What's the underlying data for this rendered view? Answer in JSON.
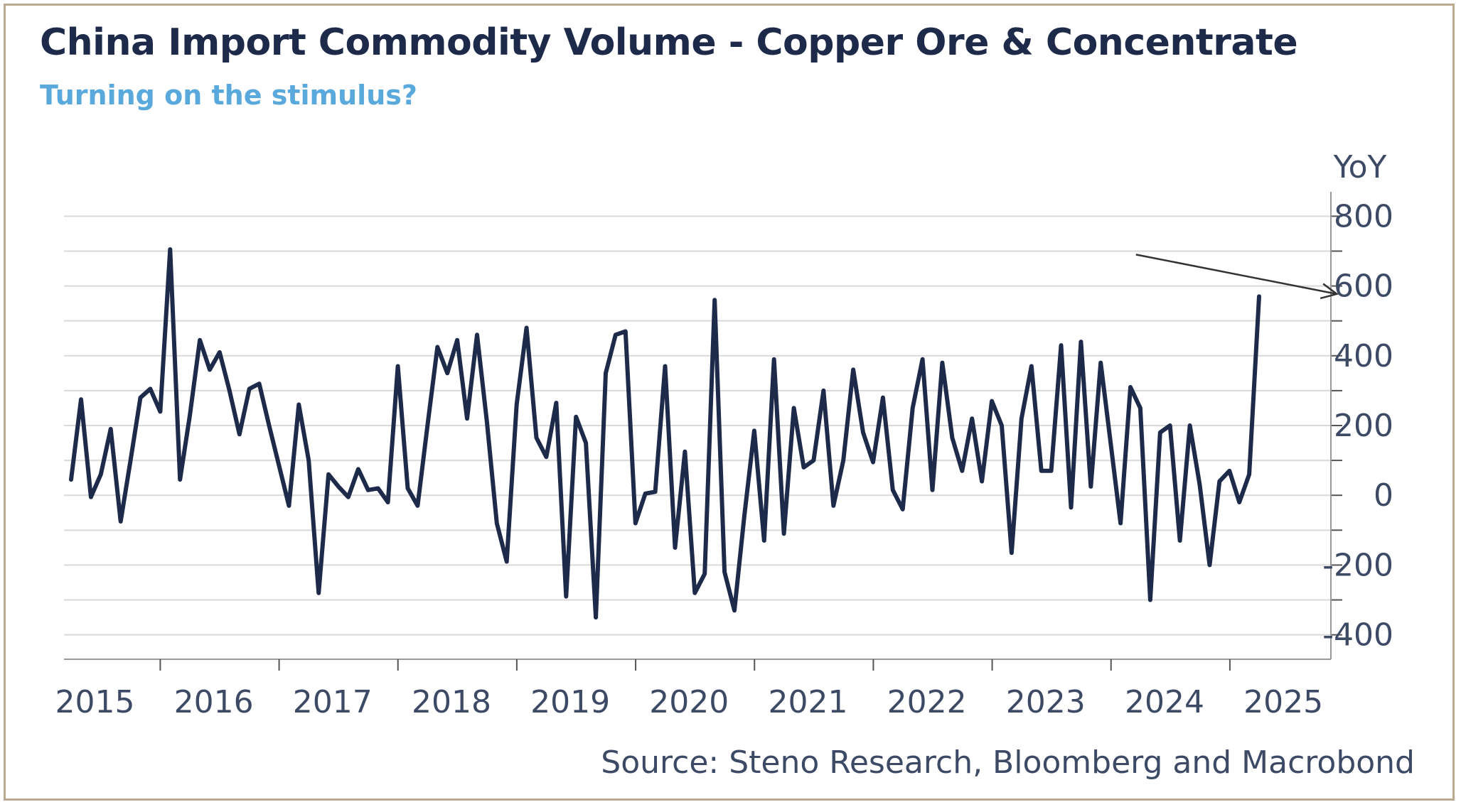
{
  "title": "China Import Commodity Volume - Copper Ore & Concentrate",
  "subtitle": "Turning on the stimulus?",
  "source": "Source: Steno Research, Bloomberg and Macrobond",
  "colors": {
    "line": "#1e2a4a",
    "subtitle": "#5aa9dc",
    "grid": "#d9d9d9",
    "frame": "#b8a98f",
    "arrow": "#333333"
  },
  "chart_data": {
    "type": "line",
    "title": "China Import Commodity Volume - Copper Ore & Concentrate",
    "subtitle": "Turning on the stimulus?",
    "unit_label": "YoY",
    "ylim": [
      -470,
      870
    ],
    "yticks": [
      800,
      600,
      400,
      200,
      0,
      -200,
      -400
    ],
    "ytick_labels": [
      "800",
      "600",
      "400",
      "200",
      "0",
      "-200",
      "-400"
    ],
    "xlim": [
      2014.94,
      2025.6
    ],
    "xticks": [
      2015,
      2016,
      2017,
      2018,
      2019,
      2020,
      2021,
      2022,
      2023,
      2024,
      2025
    ],
    "xtick_labels": [
      "2015",
      "2016",
      "2017",
      "2018",
      "2019",
      "2020",
      "2021",
      "2022",
      "2023",
      "2024",
      "2025"
    ],
    "grid": true,
    "annotation": {
      "type": "arrow",
      "from": [
        2023.96,
        690
      ],
      "to": [
        2025.65,
        577
      ]
    },
    "series": [
      {
        "name": "Copper Ore & Concentrate YoY",
        "x_start": 2015.0,
        "x_step": 0.0833,
        "values": [
          45,
          275,
          -5,
          60,
          190,
          -75,
          100,
          280,
          305,
          240,
          705,
          45,
          230,
          445,
          360,
          410,
          300,
          175,
          305,
          320,
          200,
          85,
          -30,
          260,
          100,
          -280,
          60,
          25,
          -5,
          75,
          15,
          20,
          -20,
          370,
          20,
          -30,
          200,
          425,
          350,
          445,
          220,
          460,
          210,
          -80,
          -190,
          260,
          480,
          165,
          110,
          265,
          -290,
          225,
          150,
          -350,
          350,
          460,
          470,
          -80,
          5,
          10,
          370,
          -150,
          125,
          -280,
          -225,
          560,
          -220,
          -330,
          -60,
          185,
          -130,
          390,
          -110,
          250,
          80,
          100,
          300,
          -30,
          100,
          360,
          180,
          95,
          280,
          15,
          -40,
          250,
          390,
          15,
          380,
          165,
          70,
          220,
          40,
          270,
          200,
          -165,
          220,
          370,
          70,
          70,
          430,
          -35,
          440,
          25,
          380,
          150,
          -80,
          310,
          250,
          -300,
          180,
          200,
          -130,
          200,
          30,
          -200,
          40,
          70,
          -20,
          60,
          570
        ]
      }
    ]
  }
}
